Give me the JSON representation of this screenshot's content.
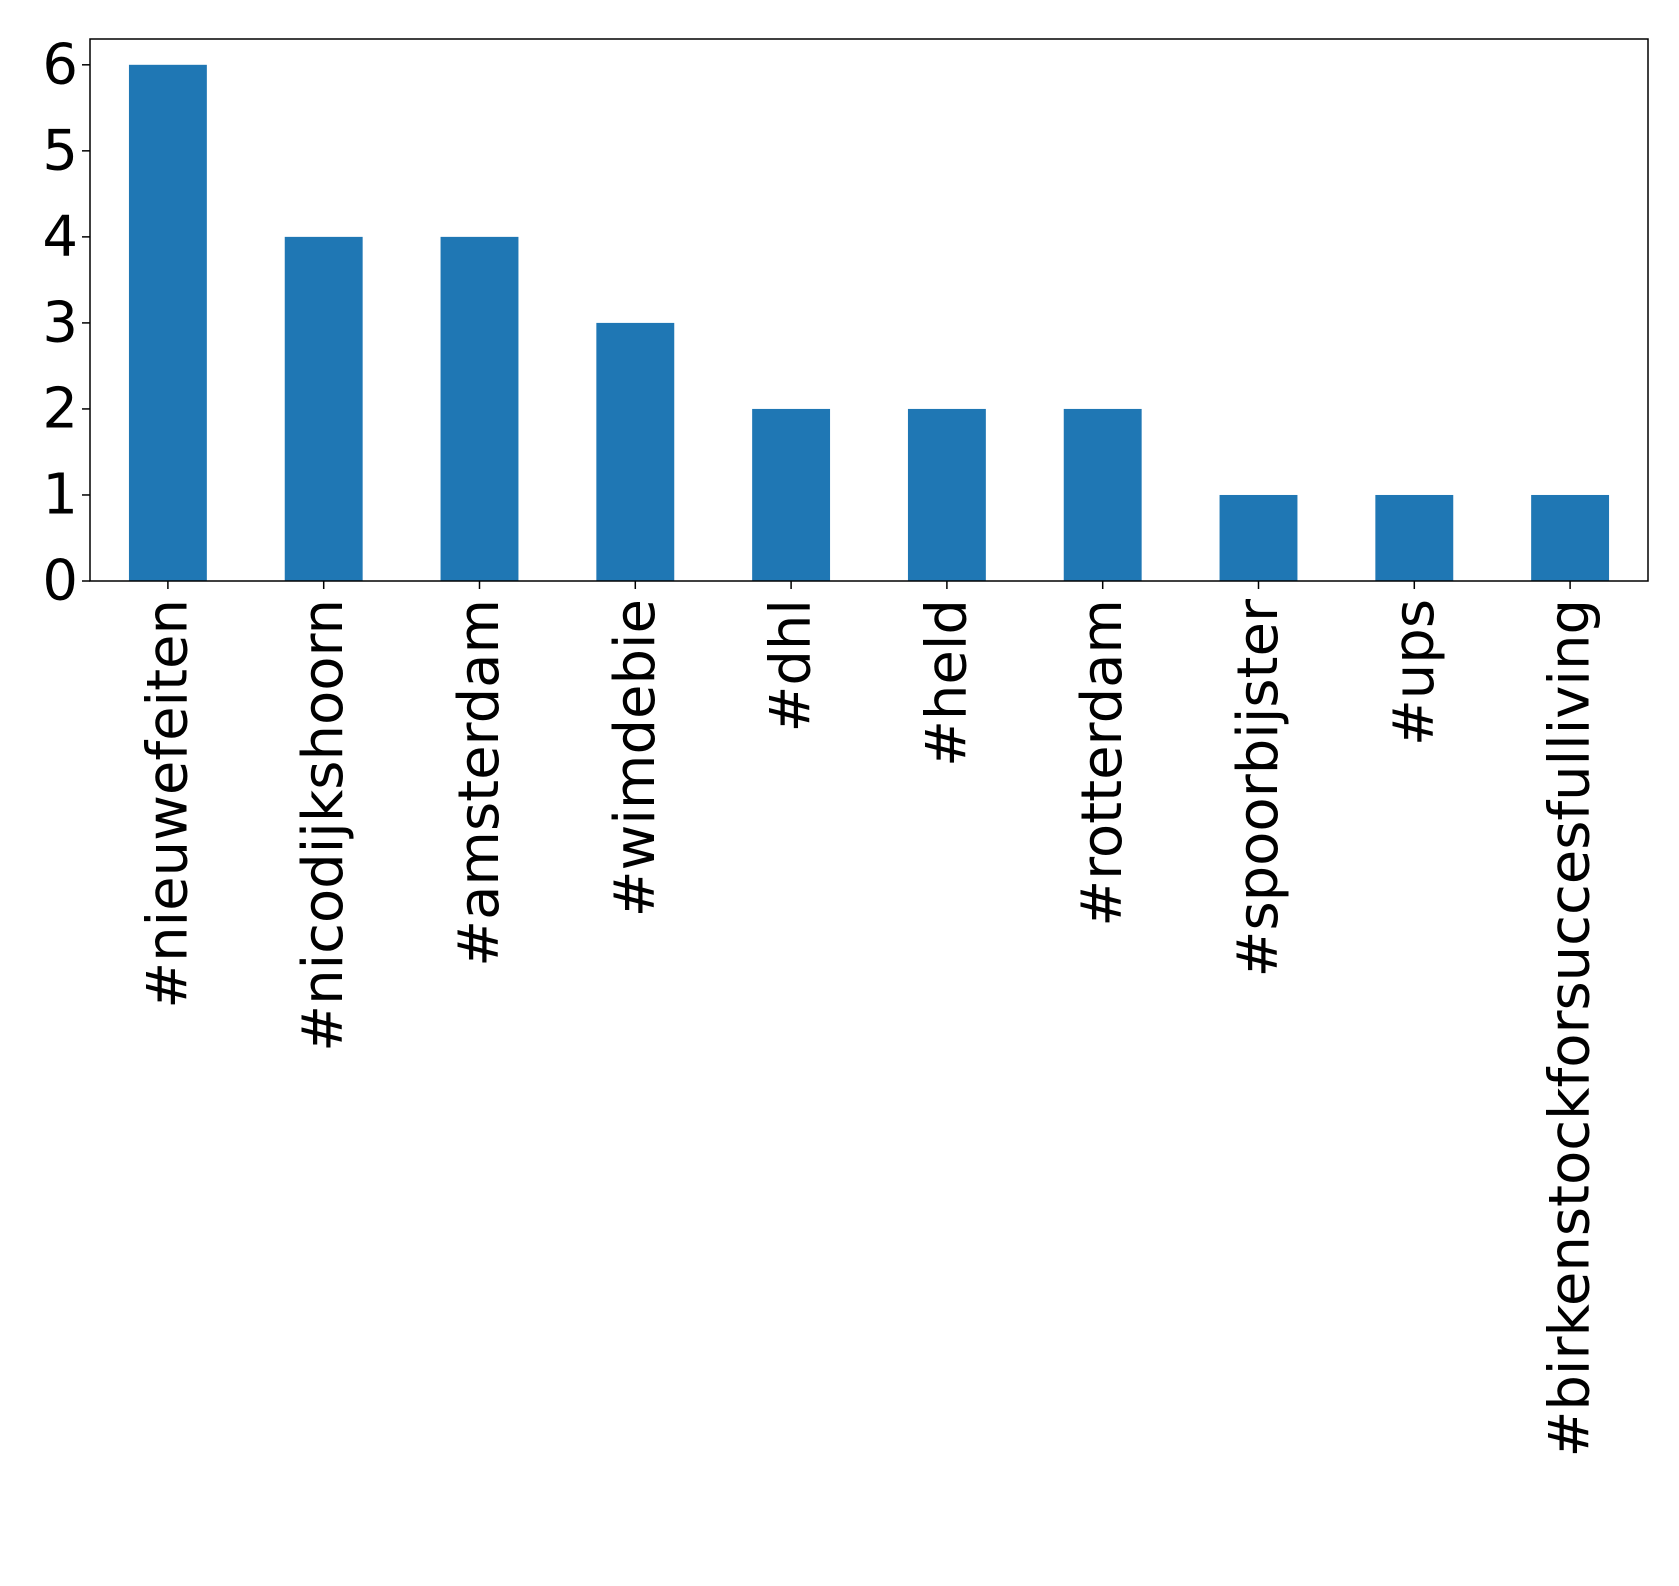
{
  "chart_data": {
    "type": "bar",
    "title": "",
    "xlabel": "",
    "ylabel": "",
    "categories": [
      "#nieuwefeiten",
      "#nicodijkshoorn",
      "#amsterdam",
      "#wimdebie",
      "#dhl",
      "#held",
      "#rotterdam",
      "#spoorbijster",
      "#ups",
      "#birkenstockforsuccesfulliving"
    ],
    "values": [
      6,
      4,
      4,
      3,
      2,
      2,
      2,
      1,
      1,
      1
    ],
    "ylim": [
      0,
      6.3
    ],
    "yticks": [
      0,
      1,
      2,
      3,
      4,
      5,
      6
    ],
    "bar_color": "#1f77b4",
    "grid": false,
    "legend": "none",
    "x_tick_rotation": "vertical"
  }
}
